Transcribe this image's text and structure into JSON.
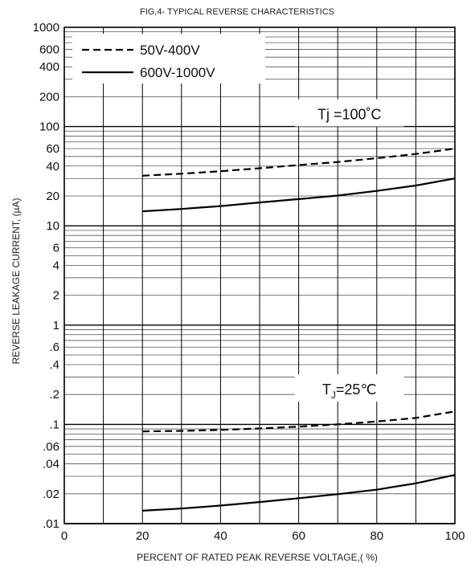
{
  "chart_data": {
    "type": "line",
    "title": "FIG,4- TYPICAL REVERSE CHARACTERISTICS",
    "xlabel": "PERCENT OF RATED PEAK REVERSE VOLTAGE,( %)",
    "ylabel": "REVERSE LEAKAGE CURRENT, (µA)",
    "x_scale": "linear",
    "y_scale": "log",
    "xlim": [
      0,
      100
    ],
    "ylim": [
      0.01,
      1000
    ],
    "x_ticks": [
      0,
      20,
      40,
      60,
      80,
      100
    ],
    "x_tick_labels": [
      "0",
      "20",
      "40",
      "60",
      "80",
      "100"
    ],
    "y_ticks": [
      0.01,
      0.02,
      0.04,
      0.06,
      0.1,
      0.2,
      0.4,
      0.6,
      1,
      2,
      4,
      6,
      10,
      20,
      40,
      60,
      100,
      200,
      400,
      600,
      1000
    ],
    "y_tick_labels": [
      ".01",
      ".02",
      ".04",
      ".06",
      ".1",
      ".2",
      ".4",
      ".6",
      "1",
      "2",
      "4",
      "6",
      "10",
      "20",
      "40",
      "60",
      "100",
      "200",
      "400",
      "600",
      "1000"
    ],
    "grid": true,
    "legend": {
      "placement": "top-left",
      "entries": [
        {
          "label": "50V-400V",
          "style": "dashed"
        },
        {
          "label": "600V-1000V",
          "style": "solid"
        }
      ]
    },
    "annotations": [
      {
        "text": "Tj =100˚C",
        "x": 73,
        "y": 130
      },
      {
        "text": "T",
        "sub": "J",
        "rest": "=25℃",
        "x": 73,
        "y": 0.22
      }
    ],
    "series": [
      {
        "legend": "50V-400V",
        "style": "dashed",
        "x": [
          20,
          30,
          40,
          50,
          60,
          70,
          80,
          90,
          100
        ],
        "y": [
          32,
          33.5,
          35.5,
          38,
          41,
          44,
          48,
          53,
          60
        ]
      },
      {
        "legend": "600V-1000V",
        "style": "solid",
        "x": [
          20,
          30,
          40,
          50,
          60,
          70,
          80,
          90,
          100
        ],
        "y": [
          14,
          14.8,
          15.8,
          17.2,
          18.6,
          20.2,
          22.5,
          25.5,
          30
        ]
      },
      {
        "legend": "50V-400V",
        "style": "dashed",
        "x": [
          20,
          30,
          40,
          50,
          60,
          70,
          80,
          90,
          100
        ],
        "y": [
          0.085,
          0.086,
          0.088,
          0.091,
          0.095,
          0.1,
          0.107,
          0.116,
          0.135
        ]
      },
      {
        "legend": "600V-1000V",
        "style": "solid",
        "x": [
          20,
          30,
          40,
          50,
          60,
          70,
          80,
          90,
          100
        ],
        "y": [
          0.0135,
          0.0142,
          0.0152,
          0.0165,
          0.018,
          0.0198,
          0.022,
          0.0255,
          0.031
        ]
      }
    ]
  }
}
